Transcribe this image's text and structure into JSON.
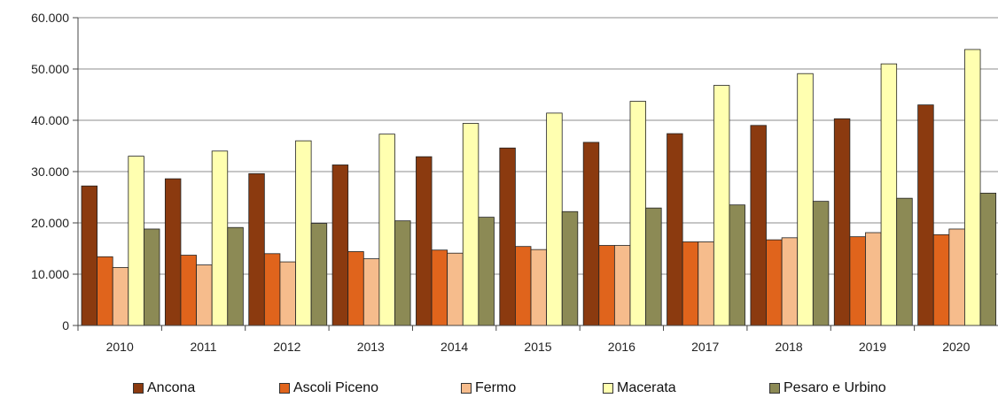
{
  "chart_data": {
    "type": "bar",
    "categories": [
      "2010",
      "2011",
      "2012",
      "2013",
      "2014",
      "2015",
      "2016",
      "2017",
      "2018",
      "2019",
      "2020"
    ],
    "ylim": [
      0,
      60000
    ],
    "yticks": [
      0,
      10000,
      20000,
      30000,
      40000,
      50000,
      60000
    ],
    "ytick_labels": [
      "0",
      "10.000",
      "20.000",
      "30.000",
      "40.000",
      "50.000",
      "60.000"
    ],
    "grid": true,
    "legend_position": "bottom",
    "series": [
      {
        "name": "Ancona",
        "color": "#8B3A0F",
        "values": [
          27200,
          28600,
          29600,
          31300,
          32900,
          34600,
          35700,
          37400,
          39000,
          40300,
          43000
        ]
      },
      {
        "name": "Ascoli Piceno",
        "color": "#E0641C",
        "values": [
          13400,
          13700,
          14000,
          14400,
          14700,
          15400,
          15600,
          16300,
          16700,
          17300,
          17700
        ]
      },
      {
        "name": "Fermo",
        "color": "#F6BC8C",
        "values": [
          11300,
          11800,
          12400,
          13000,
          14100,
          14800,
          15600,
          16300,
          17100,
          18100,
          18800
        ]
      },
      {
        "name": "Macerata",
        "color": "#FFFFB0",
        "values": [
          33000,
          34000,
          36000,
          37300,
          39400,
          41400,
          43700,
          46800,
          49100,
          51000,
          53800
        ]
      },
      {
        "name": "Pesaro e Urbino",
        "color": "#8C8A55",
        "values": [
          18800,
          19100,
          19900,
          20400,
          21100,
          22200,
          22900,
          23500,
          24200,
          24800,
          25800
        ]
      }
    ]
  }
}
